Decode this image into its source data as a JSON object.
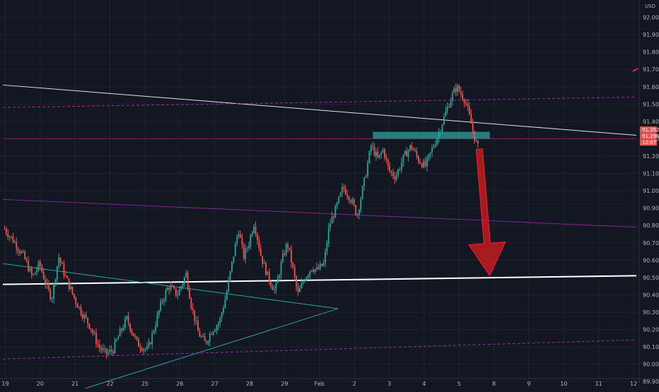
{
  "axis_unit": "USD",
  "colors": {
    "background": "#131722",
    "grid": "#1e222d",
    "up": "#26a69a",
    "down": "#ef5350",
    "text": "#b2b5be",
    "trendline_white": "#e0e3eb",
    "channel_purple": "#9c27b0",
    "triangle_teal": "#26a69a",
    "zone_teal": "#26a69a",
    "arrow_red": "#b71c1c",
    "price_tag_red": "#ef5350",
    "short_marker_pink": "#e91e63"
  },
  "chart_data": {
    "type": "candlestick",
    "ylim": [
      89.86,
      92.1
    ],
    "y_ticks": [
      "92.000",
      "91.900",
      "91.800",
      "91.700",
      "91.600",
      "91.500",
      "91.400",
      "91.300",
      "91.200",
      "91.100",
      "91.000",
      "90.900",
      "90.800",
      "90.700",
      "90.600",
      "90.500",
      "90.400",
      "90.300",
      "90.200",
      "90.100",
      "90.000",
      "89.900"
    ],
    "y_tick_values": [
      92.0,
      91.9,
      91.8,
      91.7,
      91.6,
      91.5,
      91.4,
      91.3,
      91.2,
      91.1,
      91.0,
      90.9,
      90.8,
      90.7,
      90.6,
      90.5,
      90.4,
      90.3,
      90.2,
      90.1,
      90.0,
      89.9
    ],
    "x_ticks": [
      "19",
      "20",
      "21",
      "22",
      "25",
      "26",
      "27",
      "28",
      "29",
      "Feb",
      "2",
      "3",
      "4",
      "5",
      "8",
      "9",
      "10",
      "11",
      "12"
    ],
    "x_tick_index": [
      0,
      1,
      2,
      3,
      4,
      5,
      6,
      7,
      8,
      9,
      10,
      11,
      12,
      13,
      14,
      15,
      16,
      17,
      18
    ],
    "x_range": [
      -0.05,
      18.1
    ],
    "price_path": [
      [
        0.0,
        90.78
      ],
      [
        0.3,
        90.7
      ],
      [
        0.55,
        90.62
      ],
      [
        0.8,
        90.5
      ],
      [
        1.0,
        90.58
      ],
      [
        1.2,
        90.45
      ],
      [
        1.35,
        90.38
      ],
      [
        1.55,
        90.62
      ],
      [
        1.75,
        90.5
      ],
      [
        2.0,
        90.38
      ],
      [
        2.2,
        90.3
      ],
      [
        2.45,
        90.22
      ],
      [
        2.7,
        90.1
      ],
      [
        2.9,
        90.06
      ],
      [
        3.1,
        90.08
      ],
      [
        3.3,
        90.18
      ],
      [
        3.5,
        90.26
      ],
      [
        3.8,
        90.12
      ],
      [
        4.1,
        90.08
      ],
      [
        4.3,
        90.22
      ],
      [
        4.5,
        90.36
      ],
      [
        4.7,
        90.45
      ],
      [
        4.95,
        90.4
      ],
      [
        5.2,
        90.52
      ],
      [
        5.35,
        90.34
      ],
      [
        5.55,
        90.18
      ],
      [
        5.75,
        90.12
      ],
      [
        5.95,
        90.2
      ],
      [
        6.15,
        90.24
      ],
      [
        6.35,
        90.4
      ],
      [
        6.55,
        90.62
      ],
      [
        6.7,
        90.78
      ],
      [
        6.85,
        90.62
      ],
      [
        7.0,
        90.7
      ],
      [
        7.15,
        90.82
      ],
      [
        7.35,
        90.62
      ],
      [
        7.55,
        90.5
      ],
      [
        7.75,
        90.42
      ],
      [
        7.95,
        90.6
      ],
      [
        8.1,
        90.7
      ],
      [
        8.25,
        90.56
      ],
      [
        8.4,
        90.4
      ],
      [
        8.6,
        90.5
      ],
      [
        8.8,
        90.56
      ],
      [
        8.95,
        90.54
      ],
      [
        9.15,
        90.58
      ],
      [
        9.3,
        90.8
      ],
      [
        9.5,
        90.9
      ],
      [
        9.7,
        91.02
      ],
      [
        9.9,
        90.96
      ],
      [
        10.1,
        90.86
      ],
      [
        10.3,
        91.05
      ],
      [
        10.5,
        91.26
      ],
      [
        10.7,
        91.18
      ],
      [
        10.85,
        91.24
      ],
      [
        11.0,
        91.12
      ],
      [
        11.2,
        91.08
      ],
      [
        11.45,
        91.2
      ],
      [
        11.65,
        91.26
      ],
      [
        11.85,
        91.18
      ],
      [
        12.05,
        91.14
      ],
      [
        12.25,
        91.24
      ],
      [
        12.45,
        91.34
      ],
      [
        12.65,
        91.46
      ],
      [
        12.8,
        91.54
      ],
      [
        12.95,
        91.6
      ],
      [
        13.1,
        91.55
      ],
      [
        13.2,
        91.52
      ],
      [
        13.3,
        91.44
      ],
      [
        13.4,
        91.36
      ],
      [
        13.5,
        91.28
      ],
      [
        13.56,
        91.25
      ]
    ],
    "lines": [
      {
        "kind": "trendline",
        "points": [
          [
            -0.05,
            91.61
          ],
          [
            18.1,
            91.32
          ]
        ]
      },
      {
        "kind": "channel",
        "dashed": true,
        "points": [
          [
            -0.05,
            91.48
          ],
          [
            18.1,
            91.54
          ]
        ]
      },
      {
        "kind": "channel",
        "dashed": false,
        "points": [
          [
            -0.05,
            90.95
          ],
          [
            18.1,
            90.79
          ]
        ]
      },
      {
        "kind": "channel",
        "dashed": true,
        "points": [
          [
            -0.05,
            90.03
          ],
          [
            18.1,
            90.14
          ]
        ]
      },
      {
        "kind": "horizontal",
        "dashed": false,
        "points": [
          [
            -0.05,
            91.3
          ],
          [
            18.1,
            91.3
          ]
        ]
      },
      {
        "kind": "support",
        "points": [
          [
            -0.05,
            90.46
          ],
          [
            18.1,
            90.51
          ]
        ]
      },
      {
        "kind": "triangle",
        "points": [
          [
            -0.05,
            90.58
          ],
          [
            9.55,
            90.32
          ],
          [
            2.3,
            89.86
          ]
        ]
      }
    ],
    "zones": [
      {
        "x0": 10.55,
        "x1": 13.9,
        "y0": 91.3,
        "y1": 91.34
      }
    ],
    "arrow": {
      "from": [
        13.6,
        91.24
      ],
      "to": [
        13.9,
        90.51
      ]
    },
    "price_tags": [
      {
        "label": "91.352",
        "value": 91.352
      },
      {
        "label": "91.296",
        "value": 91.296
      },
      {
        "label": "12:07",
        "value": 91.25
      }
    ]
  }
}
